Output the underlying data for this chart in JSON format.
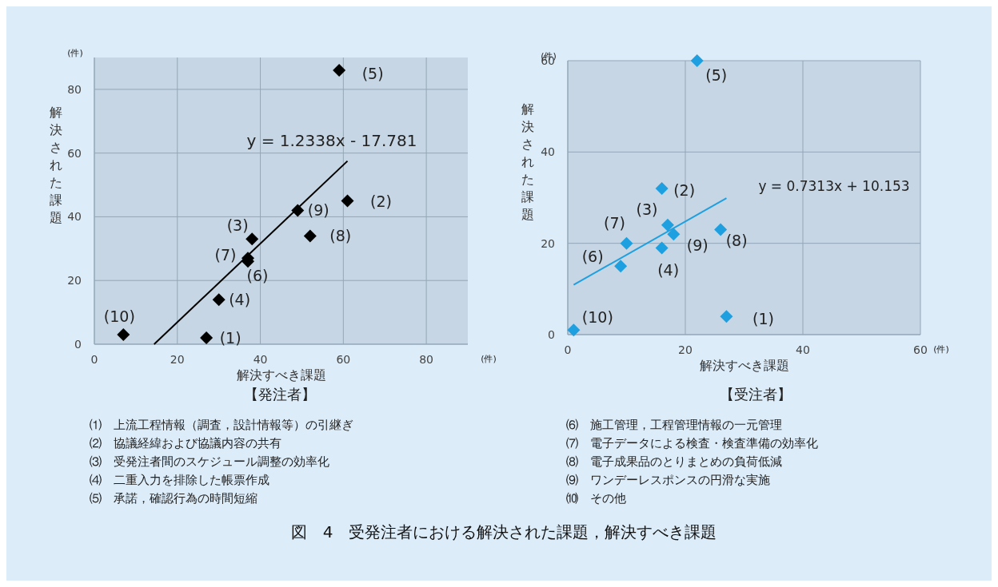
{
  "chart_data": [
    {
      "type": "scatter",
      "title": "【発注者】",
      "xlabel": "解決すべき課題",
      "ylabel": "解決された課題",
      "xlim": [
        0,
        90
      ],
      "ylim": [
        0,
        90
      ],
      "xticks": [
        0,
        20,
        40,
        60,
        80
      ],
      "yticks": [
        0,
        20,
        40,
        60,
        80
      ],
      "grid": true,
      "annotations": [
        "y = 1.2338x - 17.781",
        "(件)",
        "(件)",
        {
          "text": "(1)",
          "x": 27,
          "y": 2
        },
        {
          "text": "(2)",
          "x": 61,
          "y": 45
        },
        {
          "text": "(3)",
          "x": 38,
          "y": 33
        },
        {
          "text": "(4)",
          "x": 30,
          "y": 14
        },
        {
          "text": "(5)",
          "x": 59,
          "y": 86
        },
        {
          "text": "(6)",
          "x": 37,
          "y": 26
        },
        {
          "text": "(7)",
          "x": 37,
          "y": 27
        },
        {
          "text": "(8)",
          "x": 52,
          "y": 34
        },
        {
          "text": "(9)",
          "x": 49,
          "y": 42
        },
        {
          "text": "(10)",
          "x": 7,
          "y": 3
        }
      ],
      "series": [
        {
          "type": "scatter",
          "color": "#000000",
          "marker": "diamond",
          "x": [
            27,
            61,
            38,
            30,
            59,
            37,
            37,
            52,
            49,
            7
          ],
          "values": [
            2,
            45,
            33,
            14,
            86,
            26,
            27,
            34,
            42,
            3
          ]
        },
        {
          "type": "line",
          "color": "#000000",
          "x": [
            14.4,
            61
          ],
          "values": [
            0,
            57.5
          ]
        }
      ]
    },
    {
      "type": "scatter",
      "title": "【受注者】",
      "xlabel": "解決すべき課題",
      "ylabel": "解決された課題",
      "xlim": [
        0,
        60
      ],
      "ylim": [
        0,
        60
      ],
      "xticks": [
        0,
        20,
        40,
        60
      ],
      "yticks": [
        0,
        20,
        40,
        60
      ],
      "grid": true,
      "annotations": [
        "y = 0.7313x + 10.153",
        "(件)",
        "(件)",
        {
          "text": "(1)",
          "x": 27,
          "y": 4
        },
        {
          "text": "(2)",
          "x": 16,
          "y": 32
        },
        {
          "text": "(3)",
          "x": 17,
          "y": 24
        },
        {
          "text": "(4)",
          "x": 16,
          "y": 19
        },
        {
          "text": "(5)",
          "x": 22,
          "y": 60
        },
        {
          "text": "(6)",
          "x": 9,
          "y": 15
        },
        {
          "text": "(7)",
          "x": 10,
          "y": 20
        },
        {
          "text": "(8)",
          "x": 26,
          "y": 23
        },
        {
          "text": "(9)",
          "x": 18,
          "y": 22
        },
        {
          "text": "(10)",
          "x": 1,
          "y": 1
        }
      ],
      "series": [
        {
          "type": "scatter",
          "color": "#1ea0e0",
          "marker": "diamond",
          "x": [
            27,
            16,
            17,
            16,
            22,
            9,
            10,
            26,
            18,
            1
          ],
          "values": [
            4,
            32,
            24,
            19,
            60,
            15,
            20,
            23,
            22,
            1
          ]
        },
        {
          "type": "line",
          "color": "#1ea0e0",
          "x": [
            1,
            27
          ],
          "values": [
            10.9,
            29.9
          ]
        }
      ]
    },
    {
      "type": "other",
      "title": "図　4　受発注者における解決された課題，解決すべき課題",
      "annotations": [
        "⑴　上流工程情報（調査，設計情報等）の引継ぎ",
        "⑵　協議経緯および協議内容の共有",
        "⑶　受発注者間のスケジュール調整の効率化",
        "⑷　二重入力を排除した帳票作成",
        "⑸　承諾，確認行為の時間短縮",
        "⑹　施工管理，工程管理情報の一元管理",
        "⑺　電子データによる検査・検査準備の効率化",
        "⑻　電子成果品のとりまとめの負荷低減",
        "⑼　ワンデーレスポンスの円滑な実施",
        "⑽　その他"
      ]
    }
  ]
}
